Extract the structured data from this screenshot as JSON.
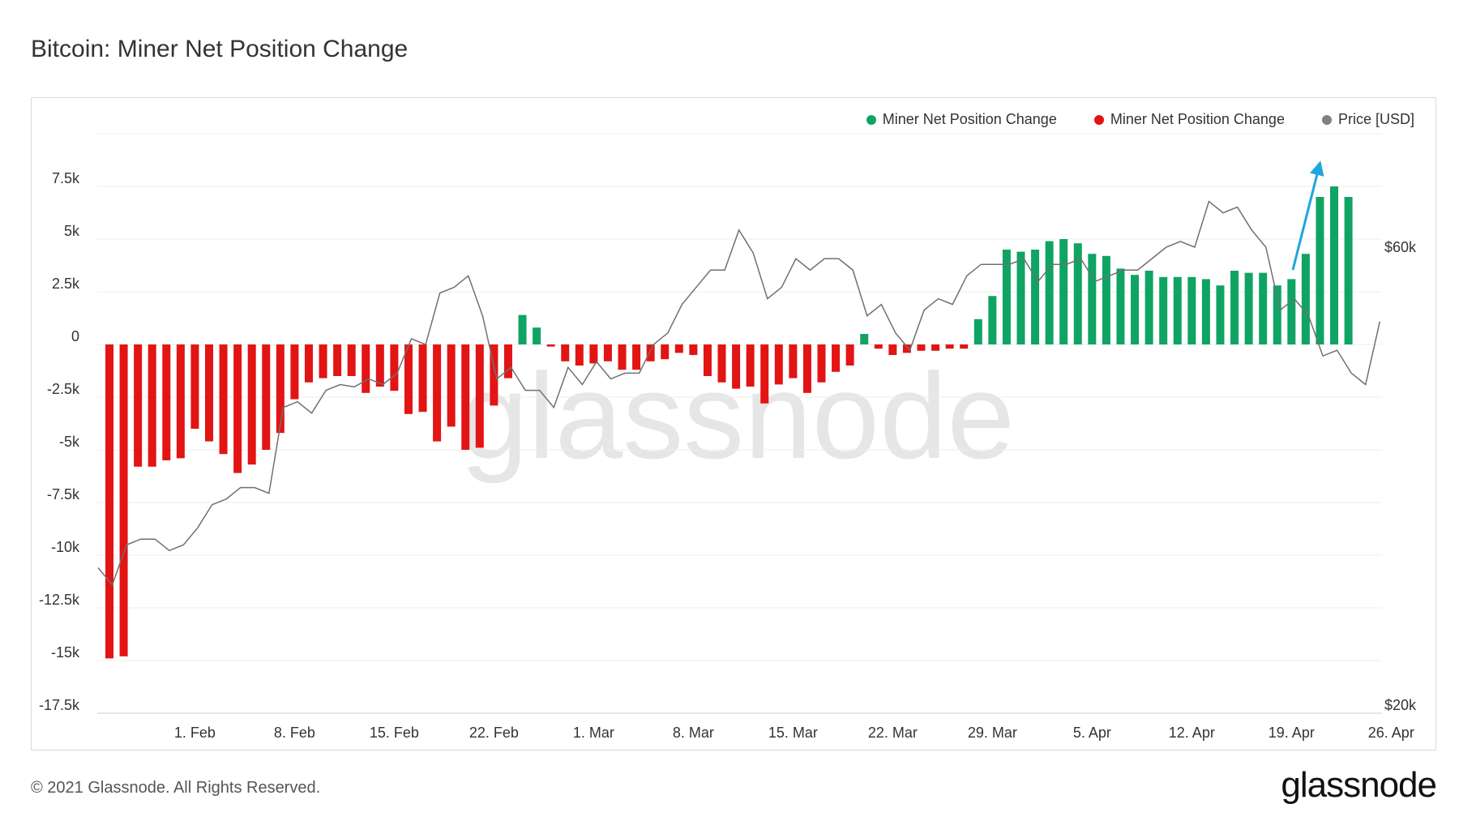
{
  "title": "Bitcoin: Miner Net Position Change",
  "footer": "© 2021 Glassnode. All Rights Reserved.",
  "logo": "glassnode",
  "watermark": "glassnode",
  "legend": [
    {
      "label": "Miner Net Position Change",
      "color": "#0fa463"
    },
    {
      "label": "Miner Net Position Change",
      "color": "#e31414"
    },
    {
      "label": "Price [USD]",
      "color": "#808080"
    }
  ],
  "colors": {
    "positive": "#0fa463",
    "negative": "#e31414",
    "price": "#707070",
    "arrow": "#1ea7dc",
    "grid": "#ececec"
  },
  "chart_data": {
    "type": "bar",
    "x_dates_start": "2021-01-26",
    "x_tick_labels": [
      {
        "day": 6,
        "label": "1. Feb"
      },
      {
        "day": 13,
        "label": "8. Feb"
      },
      {
        "day": 20,
        "label": "15. Feb"
      },
      {
        "day": 27,
        "label": "22. Feb"
      },
      {
        "day": 34,
        "label": "1. Mar"
      },
      {
        "day": 41,
        "label": "8. Mar"
      },
      {
        "day": 48,
        "label": "15. Mar"
      },
      {
        "day": 55,
        "label": "22. Mar"
      },
      {
        "day": 62,
        "label": "29. Mar"
      },
      {
        "day": 69,
        "label": "5. Apr"
      },
      {
        "day": 76,
        "label": "12. Apr"
      },
      {
        "day": 83,
        "label": "19. Apr"
      },
      {
        "day": 90,
        "label": "26. Apr"
      }
    ],
    "y_left": {
      "ylim": [
        -17500,
        10000
      ],
      "ticks": [
        7500,
        5000,
        2500,
        0,
        -2500,
        -5000,
        -7500,
        -10000,
        -12500,
        -15000,
        -17500
      ],
      "tick_labels": [
        "7.5k",
        "5k",
        "2.5k",
        "0",
        "-2.5k",
        "-5k",
        "-7.5k",
        "-10k",
        "-12.5k",
        "-15k",
        "-17.5k"
      ]
    },
    "y_right": {
      "ticks": [
        60000,
        20000
      ],
      "tick_labels": [
        "$60k",
        "$20k"
      ]
    },
    "series": [
      {
        "name": "Miner Net Position Change",
        "values": [
          -14900,
          -14800,
          -5800,
          -5800,
          -5500,
          -5400,
          -4000,
          -4600,
          -5200,
          -6100,
          -5700,
          -5000,
          -4200,
          -2600,
          -1800,
          -1600,
          -1500,
          -1500,
          -2300,
          -2000,
          -2200,
          -3300,
          -3200,
          -4600,
          -3900,
          -5000,
          -4900,
          -2900,
          -1600,
          1400,
          800,
          -100,
          -800,
          -1000,
          -900,
          -800,
          -1200,
          -1200,
          -800,
          -700,
          -400,
          -500,
          -1500,
          -1800,
          -2100,
          -2000,
          -2800,
          -1900,
          -1600,
          -2300,
          -1800,
          -1300,
          -1000,
          500,
          -200,
          -500,
          -400,
          -300,
          -300,
          -200,
          -200,
          1200,
          2300,
          4500,
          4400,
          4500,
          4900,
          5000,
          4800,
          4300,
          4200,
          3600,
          3300,
          3500,
          3200,
          3200,
          3200,
          3100,
          2800,
          3500,
          3400,
          3400,
          2800,
          3100,
          4300,
          7000,
          7500,
          7000
        ]
      },
      {
        "name": "Price [USD]",
        "values": [
          32000,
          30500,
          34000,
          34500,
          34500,
          33500,
          34000,
          35500,
          37500,
          38000,
          39000,
          39000,
          38500,
          46000,
          46500,
          45500,
          47500,
          48000,
          47800,
          48500,
          48000,
          49000,
          52000,
          51500,
          56000,
          56500,
          57500,
          54000,
          48500,
          49500,
          47500,
          47500,
          46000,
          49500,
          48000,
          50000,
          48500,
          49000,
          49000,
          51500,
          52500,
          55000,
          56500,
          58000,
          58000,
          61500,
          59500,
          55500,
          56500,
          59000,
          58000,
          59000,
          59000,
          58000,
          54000,
          55000,
          52500,
          51000,
          54500,
          55500,
          55000,
          57500,
          58500,
          58500,
          58500,
          59000,
          57000,
          58500,
          58500,
          59000,
          57000,
          57500,
          58000,
          58000,
          59000,
          60000,
          60500,
          60000,
          64000,
          63000,
          63500,
          61500,
          60000,
          54500,
          55500,
          54000,
          50500,
          51000,
          49000,
          48000,
          53500
        ]
      }
    ]
  }
}
